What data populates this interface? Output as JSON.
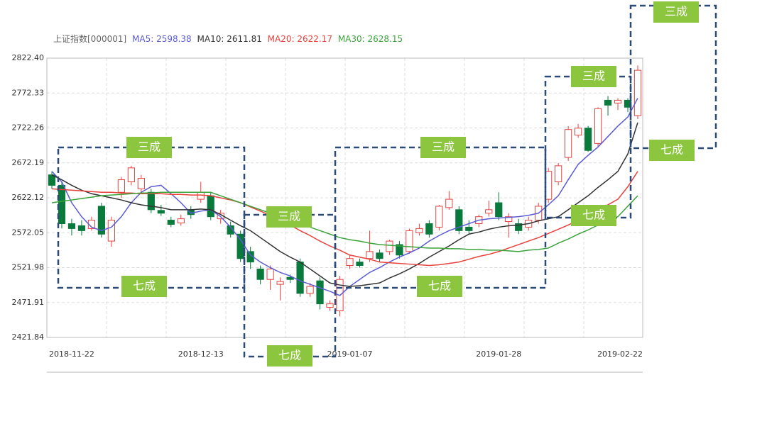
{
  "chart_data": {
    "type": "candlestick",
    "title": "上证指数[000001]",
    "categories": [
      null,
      null,
      "2018-11-22",
      null,
      null,
      null,
      null,
      null,
      null,
      null,
      null,
      null,
      null,
      null,
      null,
      "2018-12-13",
      null,
      null,
      null,
      null,
      null,
      null,
      null,
      null,
      null,
      null,
      null,
      null,
      null,
      null,
      "2019-01-07",
      null,
      null,
      null,
      null,
      null,
      null,
      null,
      null,
      null,
      null,
      null,
      null,
      null,
      null,
      "2019-01-28",
      null,
      null,
      null,
      null,
      null,
      null,
      null,
      null,
      null,
      null,
      null,
      null,
      null,
      "2019-02-22"
    ],
    "open": [
      2655,
      2640,
      2585,
      2582,
      2578,
      2610,
      2560,
      2630,
      2645,
      2635,
      2630,
      2604,
      2590,
      2586,
      2605,
      2620,
      2625,
      2592,
      2582,
      2570,
      2545,
      2520,
      2505,
      2498,
      2508,
      2530,
      2485,
      2503,
      2465,
      2460,
      2525,
      2530,
      2535,
      2543,
      2545,
      2555,
      2545,
      2572,
      2585,
      2580,
      2608,
      2605,
      2580,
      2585,
      2600,
      2615,
      2588,
      2585,
      2580,
      2590,
      2620,
      2645,
      2680,
      2712,
      2722,
      2700,
      2762,
      2758,
      2762,
      2740
    ],
    "high": [
      2660,
      2645,
      2592,
      2590,
      2595,
      2615,
      2595,
      2652,
      2668,
      2655,
      2635,
      2612,
      2595,
      2598,
      2610,
      2645,
      2630,
      2605,
      2588,
      2575,
      2552,
      2525,
      2525,
      2508,
      2512,
      2535,
      2500,
      2508,
      2475,
      2510,
      2540,
      2535,
      2575,
      2548,
      2562,
      2560,
      2578,
      2585,
      2590,
      2612,
      2632,
      2610,
      2590,
      2598,
      2618,
      2630,
      2600,
      2592,
      2595,
      2615,
      2665,
      2672,
      2725,
      2728,
      2725,
      2752,
      2768,
      2765,
      2765,
      2812
    ],
    "low": [
      2635,
      2578,
      2568,
      2568,
      2575,
      2565,
      2552,
      2622,
      2640,
      2630,
      2600,
      2596,
      2580,
      2582,
      2592,
      2615,
      2590,
      2585,
      2565,
      2530,
      2520,
      2498,
      2490,
      2475,
      2500,
      2480,
      2480,
      2462,
      2460,
      2452,
      2520,
      2522,
      2530,
      2530,
      2540,
      2535,
      2542,
      2568,
      2565,
      2575,
      2605,
      2570,
      2570,
      2580,
      2595,
      2590,
      2565,
      2570,
      2575,
      2585,
      2615,
      2640,
      2675,
      2708,
      2688,
      2695,
      2740,
      2748,
      2745,
      2735
    ],
    "close": [
      2640,
      2585,
      2578,
      2575,
      2590,
      2570,
      2590,
      2648,
      2665,
      2650,
      2605,
      2600,
      2584,
      2592,
      2598,
      2630,
      2595,
      2600,
      2570,
      2535,
      2530,
      2505,
      2520,
      2502,
      2505,
      2485,
      2495,
      2470,
      2470,
      2505,
      2535,
      2525,
      2545,
      2535,
      2560,
      2540,
      2575,
      2578,
      2570,
      2610,
      2620,
      2575,
      2575,
      2595,
      2605,
      2595,
      2595,
      2575,
      2590,
      2610,
      2660,
      2668,
      2720,
      2722,
      2690,
      2750,
      2755,
      2762,
      2752,
      2805
    ],
    "up_color": "#e8413c",
    "down_color": "#0a7a3c",
    "ma": [
      {
        "label": "MA5: 2598.38",
        "color": "#5b5bd6",
        "values": [
          2660,
          2645,
          2615,
          2595,
          2580,
          2575,
          2580,
          2595,
          2615,
          2630,
          2638,
          2640,
          2628,
          2615,
          2600,
          2603,
          2605,
          2595,
          2580,
          2562,
          2540,
          2530,
          2522,
          2515,
          2510,
          2503,
          2498,
          2493,
          2488,
          2482,
          2495,
          2505,
          2515,
          2522,
          2530,
          2537,
          2543,
          2550,
          2560,
          2568,
          2575,
          2580,
          2585,
          2590,
          2592,
          2593,
          2594,
          2595,
          2597,
          2600,
          2612,
          2625,
          2648,
          2670,
          2683,
          2695,
          2710,
          2725,
          2738,
          2765
        ]
      },
      {
        "label": "MA10: 2611.81",
        "color": "#333333",
        "values": [
          2655,
          2648,
          2640,
          2633,
          2628,
          2625,
          2622,
          2619,
          2615,
          2612,
          2610,
          2608,
          2605,
          2605,
          2605,
          2606,
          2605,
          2598,
          2590,
          2582,
          2575,
          2565,
          2555,
          2545,
          2537,
          2530,
          2520,
          2510,
          2500,
          2497,
          2495,
          2496,
          2498,
          2500,
          2507,
          2513,
          2520,
          2528,
          2537,
          2545,
          2553,
          2562,
          2570,
          2573,
          2577,
          2580,
          2582,
          2583,
          2585,
          2589,
          2592,
          2595,
          2605,
          2615,
          2625,
          2637,
          2648,
          2660,
          2685,
          2730
        ]
      },
      {
        "label": "MA20: 2622.17",
        "color": "#e8413c",
        "values": [
          2635,
          2634,
          2633,
          2632,
          2631,
          2630,
          2630,
          2629,
          2629,
          2628,
          2628,
          2628,
          2627,
          2627,
          2626,
          2626,
          2625,
          2622,
          2619,
          2615,
          2609,
          2603,
          2597,
          2590,
          2583,
          2575,
          2568,
          2560,
          2553,
          2547,
          2540,
          2537,
          2534,
          2530,
          2529,
          2528,
          2527,
          2526,
          2525,
          2526,
          2528,
          2530,
          2534,
          2538,
          2541,
          2545,
          2550,
          2555,
          2560,
          2565,
          2571,
          2577,
          2583,
          2590,
          2597,
          2605,
          2612,
          2620,
          2638,
          2660
        ]
      },
      {
        "label": "MA30: 2628.15",
        "color": "#3aa33a",
        "values": [
          2615,
          2617,
          2619,
          2621,
          2623,
          2625,
          2626,
          2627,
          2628,
          2629,
          2629,
          2630,
          2630,
          2630,
          2630,
          2630,
          2630,
          2625,
          2620,
          2615,
          2610,
          2605,
          2600,
          2595,
          2590,
          2585,
          2580,
          2575,
          2570,
          2565,
          2562,
          2560,
          2557,
          2555,
          2554,
          2553,
          2552,
          2551,
          2550,
          2550,
          2549,
          2549,
          2548,
          2548,
          2547,
          2547,
          2546,
          2545,
          2547,
          2548,
          2550,
          2557,
          2563,
          2570,
          2576,
          2583,
          2589,
          2595,
          2610,
          2625
        ]
      }
    ],
    "ylim": [
      2421.84,
      2822.4
    ],
    "yticks": [
      2421.84,
      2471.91,
      2521.98,
      2572.05,
      2622.12,
      2672.19,
      2722.26,
      2772.33,
      {
        "value": 2822.4,
        "label": "2822.40"
      }
    ],
    "grid": true,
    "annotations": [
      {
        "top": "三成",
        "bottom": "七成"
      },
      {
        "top": "三成",
        "bottom": "七成"
      },
      {
        "top": "三成",
        "bottom": "七成"
      },
      {
        "top": "三成",
        "bottom": "七成"
      },
      {
        "top": "三成",
        "bottom": "七成"
      }
    ]
  }
}
